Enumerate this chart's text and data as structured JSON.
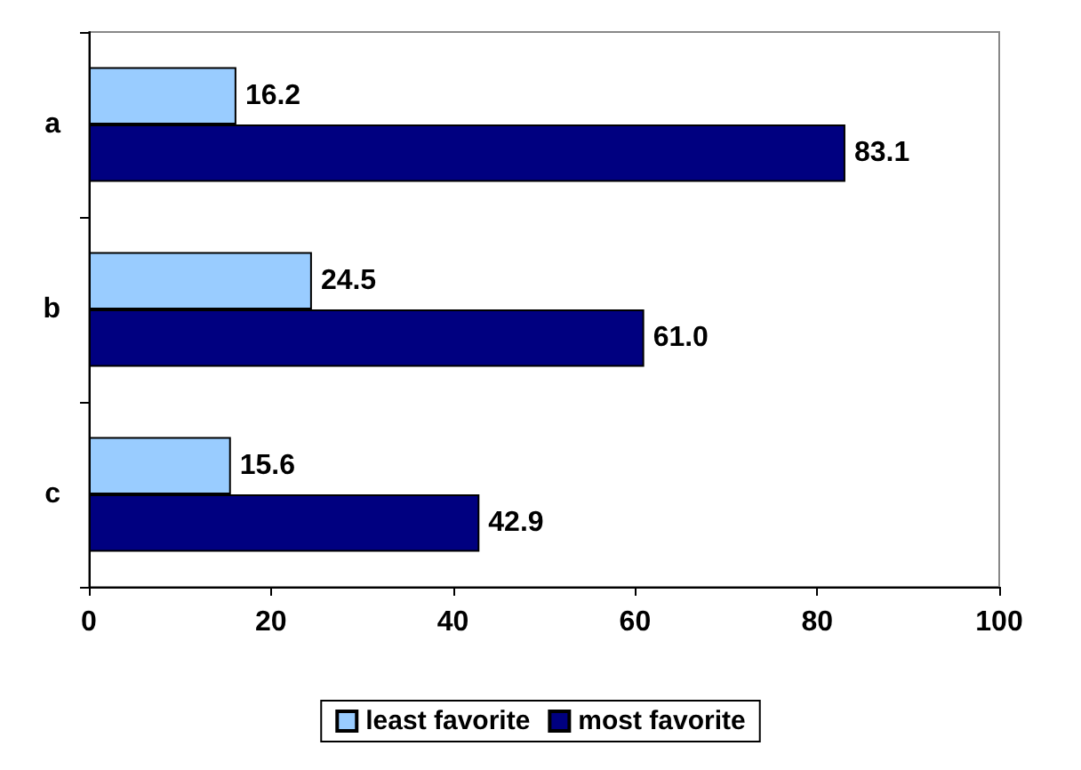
{
  "chart_data": {
    "type": "bar",
    "orientation": "horizontal",
    "categories": [
      "a",
      "b",
      "c"
    ],
    "series": [
      {
        "name": "least favorite",
        "color": "#99ccff",
        "values": [
          16.2,
          24.5,
          15.6
        ],
        "value_labels": [
          "16.2",
          "24.5",
          "15.6"
        ]
      },
      {
        "name": "most favorite",
        "color": "#000080",
        "values": [
          83.1,
          61.0,
          42.9
        ],
        "value_labels": [
          "83.1",
          "61.0",
          "42.9"
        ]
      }
    ],
    "xlim": [
      0,
      100
    ],
    "xticks": [
      0,
      20,
      40,
      60,
      80,
      100
    ],
    "grid": false,
    "legend": "bottom"
  }
}
